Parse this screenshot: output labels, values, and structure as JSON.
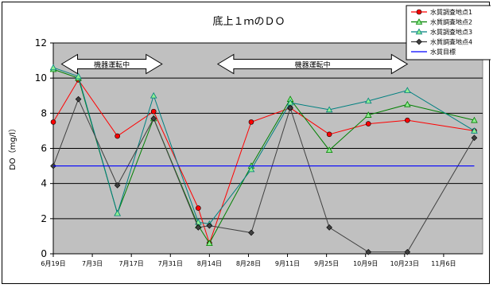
{
  "chart_data": {
    "type": "line",
    "title": "底上１ｍのＤＯ",
    "ylabel": "DO（mg/l）",
    "xlabel": "",
    "ylim": [
      0,
      12
    ],
    "yticks": [
      0,
      2,
      4,
      6,
      8,
      10,
      12
    ],
    "xticks": [
      "6月19日",
      "7月3日",
      "7月17日",
      "7月31日",
      "8月14日",
      "8月28日",
      "9月11日",
      "9月25日",
      "10月9日",
      "10月23日",
      "11月6日"
    ],
    "xtick_days": [
      0,
      14,
      28,
      42,
      56,
      70,
      84,
      98,
      112,
      126,
      140
    ],
    "x_domain": [
      0,
      154
    ],
    "grid": "horizontal",
    "background": "#c0c0c0",
    "legend_position": "top-right",
    "series": [
      {
        "name": "水質調査地点1",
        "color": "#ff0000",
        "marker": "circle",
        "days": [
          0,
          9,
          23,
          36,
          52,
          56,
          71,
          85,
          99,
          113,
          127,
          151
        ],
        "values": [
          7.5,
          9.9,
          6.7,
          8.1,
          2.6,
          0.6,
          7.5,
          8.3,
          6.8,
          7.4,
          7.6,
          7.0
        ]
      },
      {
        "name": "水質調査地点2",
        "color": "#008000",
        "marker": "triangle",
        "days": [
          0,
          9,
          23,
          36,
          52,
          56,
          71,
          85,
          99,
          113,
          127,
          151
        ],
        "values": [
          10.5,
          10.0,
          2.3,
          7.7,
          1.6,
          0.6,
          5.0,
          8.8,
          5.9,
          7.9,
          8.5,
          7.6
        ]
      },
      {
        "name": "水質調査地点3",
        "color": "#008080",
        "marker": "triangle",
        "days": [
          0,
          9,
          23,
          36,
          52,
          56,
          71,
          85,
          99,
          113,
          127,
          151
        ],
        "values": [
          10.6,
          10.1,
          2.3,
          9.0,
          1.8,
          1.7,
          4.8,
          8.6,
          8.2,
          8.7,
          9.3,
          7.0
        ]
      },
      {
        "name": "水質調査地点4",
        "color": "#404040",
        "marker": "diamond",
        "days": [
          0,
          9,
          23,
          36,
          52,
          56,
          71,
          85,
          99,
          113,
          127,
          151
        ],
        "values": [
          5.0,
          8.8,
          3.9,
          7.7,
          1.5,
          1.6,
          1.2,
          8.3,
          1.5,
          0.1,
          0.1,
          6.6
        ]
      },
      {
        "name": "水質目標",
        "color": "#0000ff",
        "marker": "none",
        "days": [
          0,
          151
        ],
        "values": [
          5,
          5
        ]
      }
    ],
    "annotations": [
      {
        "text": "機器運転中",
        "x_start_day": 3,
        "x_end_day": 39,
        "y": 10.8
      },
      {
        "text": "機器運転中",
        "x_start_day": 59,
        "x_end_day": 127,
        "y": 10.8
      }
    ]
  }
}
